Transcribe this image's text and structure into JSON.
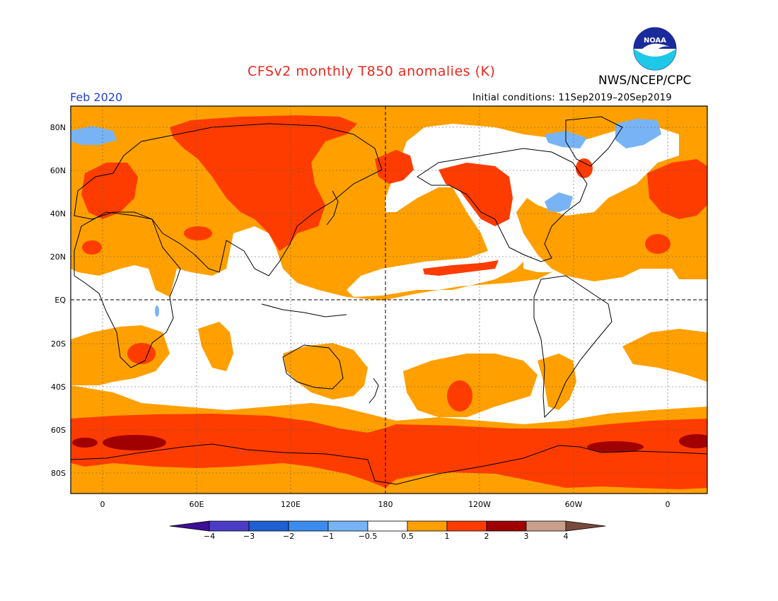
{
  "title": "CFSv2 monthly T850 anomalies (K)",
  "organization": "NWS/NCEP/CPC",
  "period": "Feb 2020",
  "initial_conditions": "Initial conditions: 11Sep2019–20Sep2019",
  "logo_text": "NOAA",
  "map": {
    "lat_ticks": [
      "80N",
      "60N",
      "40N",
      "20N",
      "EQ",
      "20S",
      "40S",
      "60S",
      "80S"
    ],
    "lon_ticks": [
      "0",
      "60E",
      "120E",
      "180",
      "120W",
      "60W",
      "0"
    ]
  },
  "colorbar": {
    "labels": [
      "−4",
      "−3",
      "−2",
      "−1",
      "−0.5",
      "0.5",
      "1",
      "2",
      "3",
      "4"
    ],
    "colors": [
      "#3c0f96",
      "#4b3cc8",
      "#1e5fd2",
      "#3c8cf0",
      "#78b4f5",
      "#ffffff",
      "#ffa000",
      "#ff3c00",
      "#a00000",
      "#c8a08c",
      "#784b3c"
    ]
  },
  "colors": {
    "land_outline": "#000000",
    "neutral": "#ffffff",
    "warm1": "#ffa000",
    "warm2": "#ff3c00",
    "warm3": "#a00000",
    "cool1": "#78b4f5"
  }
}
